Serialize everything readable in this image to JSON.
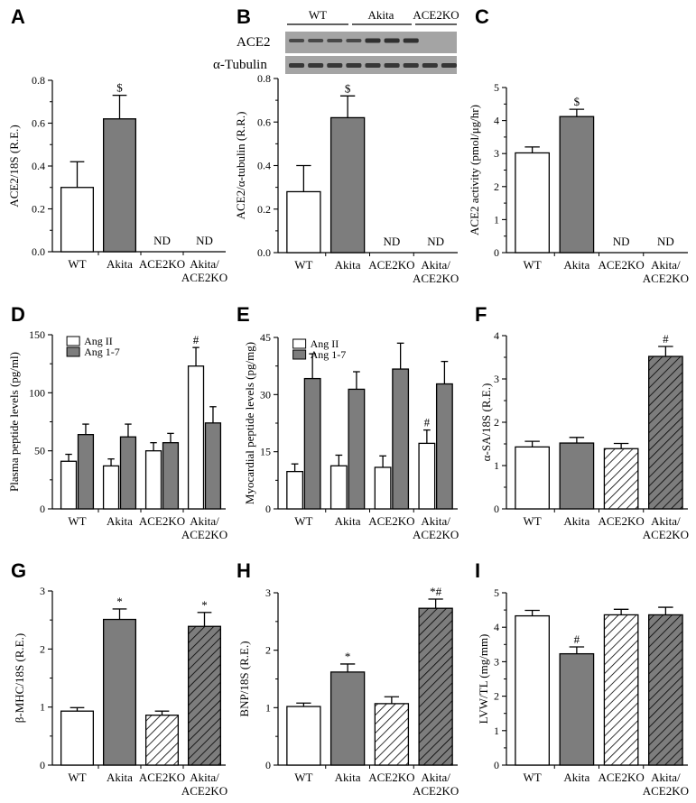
{
  "colors": {
    "white_bar": "#ffffff",
    "gray_bar": "#7d7d7d",
    "stroke": "#000000",
    "blot_bg": "#9a9a9a",
    "band": "#2a2a2a"
  },
  "blot": {
    "groups": [
      "WT",
      "Akita",
      "ACE2KO"
    ],
    "rows": [
      "ACE2",
      "α-Tubulin"
    ]
  },
  "chart_data": [
    {
      "id": "A",
      "type": "bar",
      "panel_label": "A",
      "ylabel": "ACE2/18S (R.E.)",
      "ylim": [
        0,
        0.8
      ],
      "yticks": [
        "0.0",
        "0.2",
        "0.4",
        "0.6",
        "0.8"
      ],
      "categories": [
        "WT",
        "Akita",
        "ACE2KO",
        "Akita/\nACE2KO"
      ],
      "values": [
        0.3,
        0.62,
        null,
        null
      ],
      "errors": [
        0.12,
        0.11,
        null,
        null
      ],
      "fills": [
        "white",
        "gray",
        "none",
        "none"
      ],
      "annotations": [
        "",
        "$",
        "ND",
        "ND"
      ]
    },
    {
      "id": "B",
      "type": "bar",
      "panel_label": "B",
      "ylabel": "ACE2/α-tubulin (R.R.)",
      "ylim": [
        0,
        0.8
      ],
      "yticks": [
        "0.0",
        "0.2",
        "0.4",
        "0.6",
        "0.8"
      ],
      "categories": [
        "WT",
        "Akita",
        "ACE2KO",
        "Akita/\nACE2KO"
      ],
      "values": [
        0.28,
        0.62,
        null,
        null
      ],
      "errors": [
        0.12,
        0.1,
        null,
        null
      ],
      "fills": [
        "white",
        "gray",
        "none",
        "none"
      ],
      "annotations": [
        "",
        "$",
        "ND",
        "ND"
      ]
    },
    {
      "id": "C",
      "type": "bar",
      "panel_label": "C",
      "ylabel": "ACE2 activity (pmol/μg/hr)",
      "ylim": [
        0,
        5
      ],
      "yticks": [
        "0",
        "1",
        "2",
        "3",
        "4",
        "5"
      ],
      "categories": [
        "WT",
        "Akita",
        "ACE2KO",
        "Akita/\nACE2KO"
      ],
      "values": [
        3.02,
        4.12,
        null,
        null
      ],
      "errors": [
        0.18,
        0.22,
        null,
        null
      ],
      "fills": [
        "white",
        "gray",
        "none",
        "none"
      ],
      "annotations": [
        "",
        "$",
        "ND",
        "ND"
      ]
    },
    {
      "id": "D",
      "type": "bar",
      "panel_label": "D",
      "ylabel": "Plasma peptide levels (pg/ml)",
      "ylim": [
        0,
        150
      ],
      "yticks": [
        "0",
        "50",
        "100",
        "150"
      ],
      "categories": [
        "WT",
        "Akita",
        "ACE2KO",
        "Akita/\nACE2KO"
      ],
      "legend": [
        "Ang II",
        "Ang 1-7"
      ],
      "series": [
        {
          "name": "Ang II",
          "fill": "white",
          "values": [
            41,
            37,
            50,
            123
          ],
          "errors": [
            6,
            6,
            7,
            16
          ],
          "annotations": [
            "",
            "",
            "",
            "#"
          ]
        },
        {
          "name": "Ang 1-7",
          "fill": "gray",
          "values": [
            64,
            62,
            57,
            74
          ],
          "errors": [
            9,
            11,
            8,
            14
          ],
          "annotations": [
            "",
            "",
            "",
            ""
          ]
        }
      ]
    },
    {
      "id": "E",
      "type": "bar",
      "panel_label": "E",
      "ylabel": "Myocardial peptide levels (pg/mg)",
      "ylim": [
        0,
        45
      ],
      "yticks": [
        "0",
        "15",
        "30",
        "45"
      ],
      "categories": [
        "WT",
        "Akita",
        "ACE2KO",
        "Akita/\nACE2KO"
      ],
      "legend": [
        "Ang II",
        "Ang 1-7"
      ],
      "series": [
        {
          "name": "Ang II",
          "fill": "white",
          "values": [
            9.8,
            11.3,
            10.9,
            17.2
          ],
          "errors": [
            2.0,
            2.8,
            3.0,
            3.5
          ],
          "annotations": [
            "",
            "",
            "",
            "#"
          ]
        },
        {
          "name": "Ang 1-7",
          "fill": "gray",
          "values": [
            34.2,
            31.4,
            36.7,
            32.8
          ],
          "errors": [
            6.5,
            4.6,
            6.8,
            5.9
          ],
          "annotations": [
            "",
            "",
            "",
            ""
          ]
        }
      ]
    },
    {
      "id": "F",
      "type": "bar",
      "panel_label": "F",
      "ylabel": "α-SA/18S (R.E.)",
      "ylim": [
        0,
        4
      ],
      "yticks": [
        "0",
        "1",
        "2",
        "3",
        "4"
      ],
      "categories": [
        "WT",
        "Akita",
        "ACE2KO",
        "Akita/\nACE2KO"
      ],
      "values": [
        1.43,
        1.52,
        1.39,
        3.52
      ],
      "errors": [
        0.13,
        0.13,
        0.12,
        0.23
      ],
      "fills": [
        "white",
        "gray",
        "hatch-white",
        "hatch-gray"
      ],
      "annotations": [
        "",
        "",
        "",
        "#"
      ]
    },
    {
      "id": "G",
      "type": "bar",
      "panel_label": "G",
      "ylabel": "β-MHC/18S (R.E.)",
      "ylim": [
        0,
        3
      ],
      "yticks": [
        "0",
        "1",
        "2",
        "3"
      ],
      "categories": [
        "WT",
        "Akita",
        "ACE2KO",
        "Akita/\nACE2KO"
      ],
      "values": [
        0.93,
        2.51,
        0.86,
        2.39
      ],
      "errors": [
        0.06,
        0.18,
        0.07,
        0.24
      ],
      "fills": [
        "white",
        "gray",
        "hatch-white",
        "hatch-gray"
      ],
      "annotations": [
        "",
        "*",
        "",
        "*"
      ]
    },
    {
      "id": "H",
      "type": "bar",
      "panel_label": "H",
      "ylabel": "BNP/18S (R.E.)",
      "ylim": [
        0,
        3
      ],
      "yticks": [
        "0",
        "1",
        "2",
        "3"
      ],
      "categories": [
        "WT",
        "Akita",
        "ACE2KO",
        "Akita/\nACE2KO"
      ],
      "values": [
        1.02,
        1.62,
        1.07,
        2.73
      ],
      "errors": [
        0.06,
        0.14,
        0.12,
        0.16
      ],
      "fills": [
        "white",
        "gray",
        "hatch-white",
        "hatch-gray"
      ],
      "annotations": [
        "",
        "*",
        "",
        "*#"
      ]
    },
    {
      "id": "I",
      "type": "bar",
      "panel_label": "I",
      "ylabel": "LVW/TL (mg/mm)",
      "ylim": [
        0,
        5
      ],
      "yticks": [
        "0",
        "1",
        "2",
        "3",
        "4",
        "5"
      ],
      "categories": [
        "WT",
        "Akita",
        "ACE2KO",
        "Akita/\nACE2KO"
      ],
      "values": [
        4.33,
        3.23,
        4.36,
        4.36
      ],
      "errors": [
        0.16,
        0.2,
        0.16,
        0.22
      ],
      "fills": [
        "white",
        "gray",
        "hatch-white",
        "hatch-gray"
      ],
      "annotations": [
        "",
        "#",
        "",
        ""
      ]
    }
  ]
}
